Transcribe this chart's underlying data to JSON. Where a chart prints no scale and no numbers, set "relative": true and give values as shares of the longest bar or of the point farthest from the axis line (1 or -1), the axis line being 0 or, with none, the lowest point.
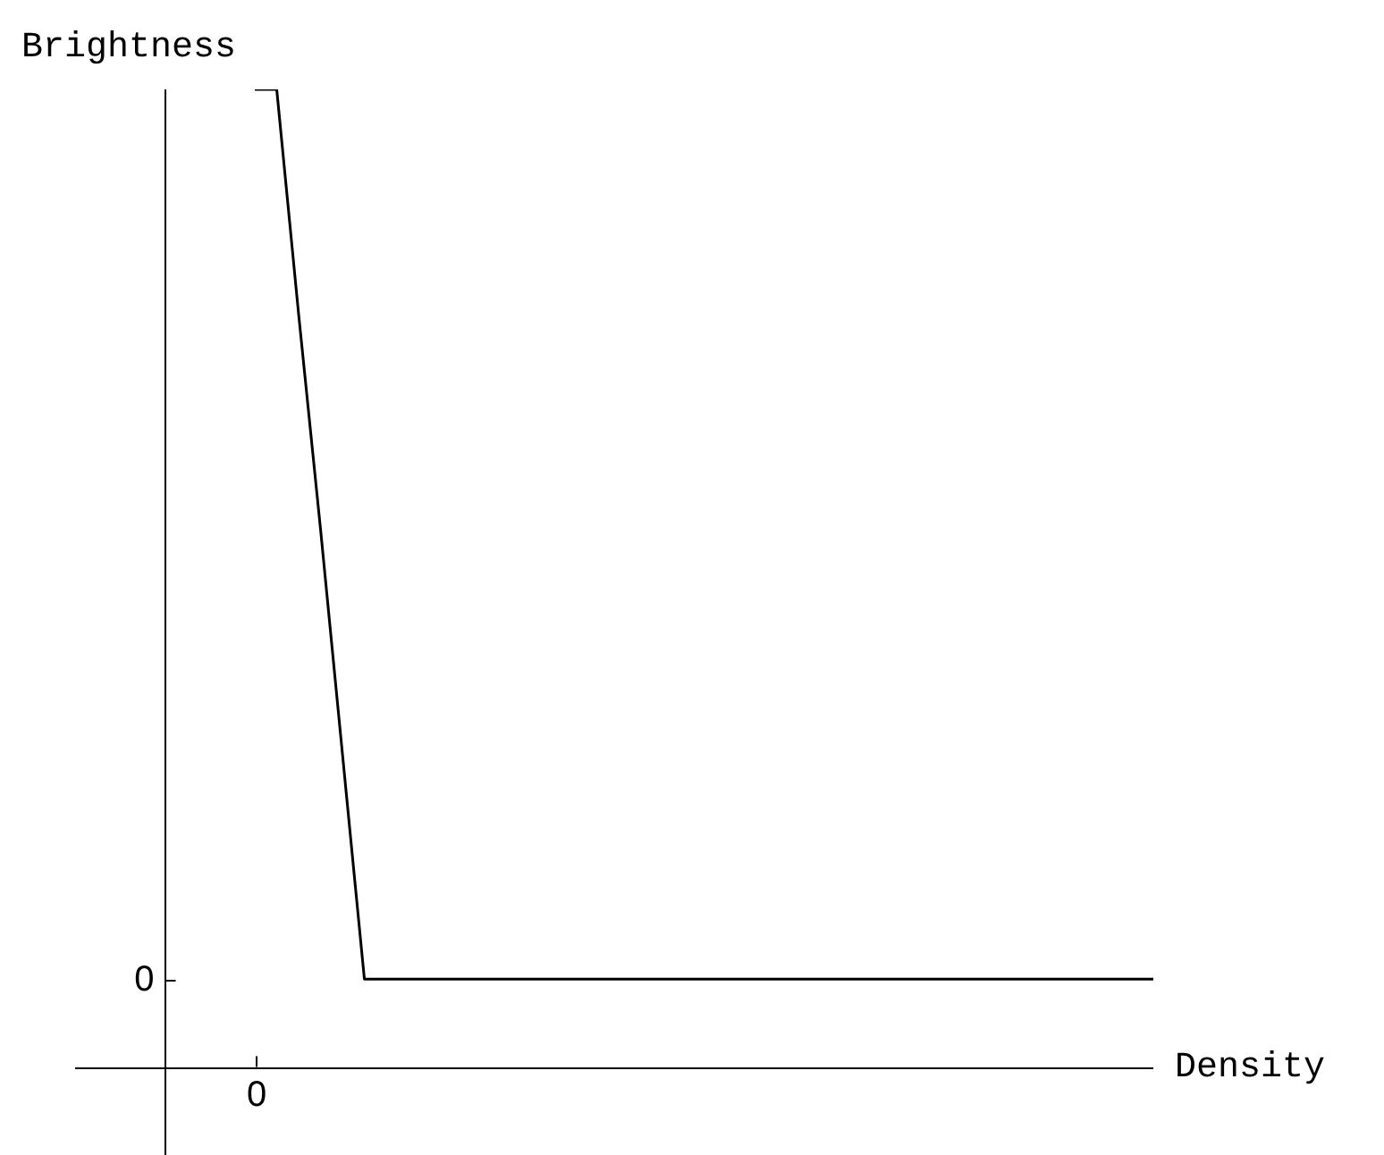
{
  "chart_data": {
    "type": "line",
    "relative": true,
    "xlabel": "Density",
    "ylabel": "Brightness",
    "categories": [
      null,
      null,
      null,
      null,
      null,
      null,
      null,
      null,
      null,
      null,
      null,
      null,
      null,
      null,
      null,
      null,
      null,
      null,
      null,
      null,
      null,
      null,
      null,
      null,
      null,
      null,
      null,
      null,
      null,
      null,
      null,
      null,
      null,
      null,
      null,
      null,
      null,
      null,
      null,
      null,
      null,
      null
    ],
    "series": [
      {
        "color": "#000000",
        "values": [
          1,
          1,
          0.77,
          0.55,
          0.32,
          0.09,
          0.09,
          0.09,
          0.09,
          0.09,
          0.09,
          0.09,
          0.09,
          0.09,
          0.09,
          0.09,
          0.09,
          0.09,
          0.09,
          0.09,
          0.09,
          0.09,
          0.09,
          0.09,
          0.09,
          0.09,
          0.09,
          0.09,
          0.09,
          0.09,
          0.09,
          0.09,
          0.09,
          0.09,
          0.09,
          0.09,
          0.09,
          0.09,
          0.09,
          0.09,
          0.09,
          0.09
        ]
      }
    ],
    "annotations": [
      "0",
      "0"
    ]
  }
}
